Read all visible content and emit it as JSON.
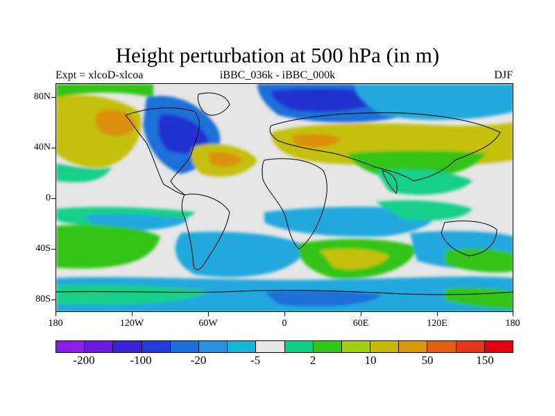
{
  "title": "Height perturbation at 500 hPa (in m)",
  "subtitle_left": "Expt = xlcoD-xlcoa",
  "subtitle_center": "iBBC_036k - iBBC_000k",
  "subtitle_right": "DJF",
  "y_ticks": [
    "80N",
    "40N",
    "0",
    "40S",
    "80S"
  ],
  "x_ticks": [
    "180",
    "120W",
    "60W",
    "0",
    "60E",
    "120E",
    "180"
  ],
  "colorbar": {
    "colors": [
      "#8a1ee6",
      "#6a18e0",
      "#3a24d8",
      "#1f3ed9",
      "#1a6fdc",
      "#2a92e0",
      "#18b4dc",
      "#e6e6e6",
      "#10d088",
      "#30c818",
      "#9ed010",
      "#c8b808",
      "#d89808",
      "#e06010",
      "#e03818",
      "#e00010"
    ],
    "labels": [
      "-200",
      "-100",
      "-20",
      "-5",
      "2",
      "10",
      "50",
      "150"
    ]
  },
  "legend_colors": {
    "deep_low": "#2030d0",
    "low": "#1e6fd8",
    "mid_low": "#22a8dc",
    "weak_pos": "#12d08a",
    "pos": "#32c418",
    "yellow": "#c4c010",
    "orange": "#dc9010",
    "neutral": "#e6e6e6"
  }
}
